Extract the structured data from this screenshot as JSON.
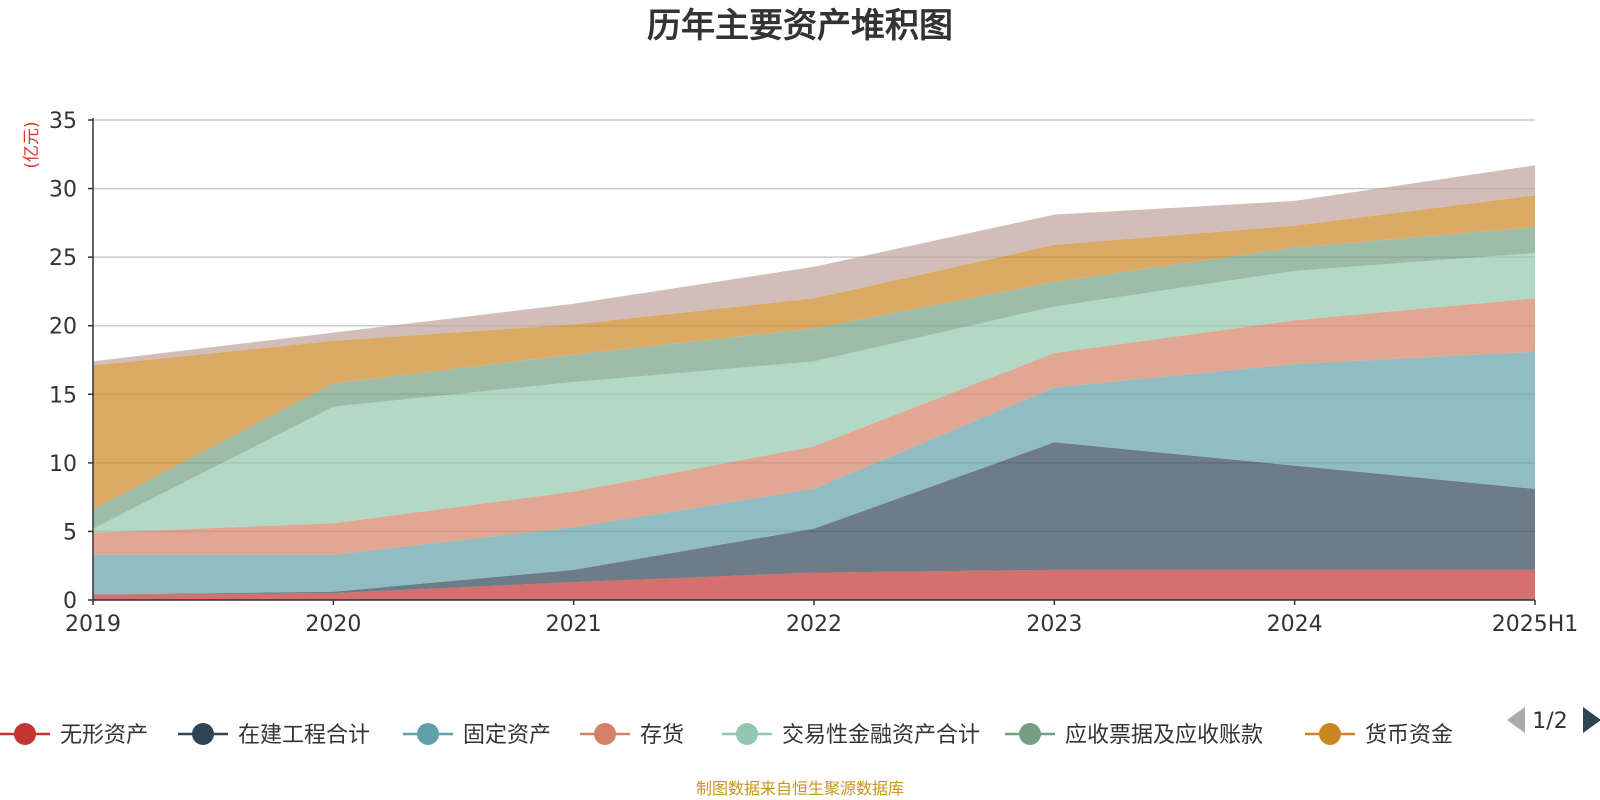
{
  "chart_data": {
    "type": "area",
    "stacked": true,
    "title": "历年主要资产堆积图",
    "unit_label": "(亿元)",
    "categories": [
      "2019",
      "2020",
      "2021",
      "2022",
      "2023",
      "2024",
      "2025H1"
    ],
    "ylim": [
      0,
      35
    ],
    "yticks": [
      0,
      5,
      10,
      15,
      20,
      25,
      30,
      35
    ],
    "grid": true,
    "legend_position": "bottom",
    "series": [
      {
        "name": "无形资产",
        "color": "#c23531",
        "values": [
          0.4,
          0.5,
          1.3,
          2.0,
          2.2,
          2.2,
          2.2
        ]
      },
      {
        "name": "在建工程合计",
        "color": "#2f4554",
        "values": [
          0.0,
          0.1,
          0.9,
          3.2,
          9.3,
          7.6,
          5.9
        ]
      },
      {
        "name": "固定资产",
        "color": "#61a0a8",
        "values": [
          2.9,
          2.7,
          3.1,
          2.9,
          4.0,
          7.4,
          10.0
        ]
      },
      {
        "name": "存货",
        "color": "#d48265",
        "values": [
          1.6,
          2.3,
          2.6,
          3.1,
          2.5,
          3.2,
          3.9
        ]
      },
      {
        "name": "交易性金融资产合计",
        "color": "#91c7ae",
        "values": [
          0.3,
          8.5,
          8.0,
          6.2,
          3.4,
          3.6,
          3.3
        ]
      },
      {
        "name": "应收票据及应收账款",
        "color": "#749f83",
        "values": [
          1.4,
          1.7,
          2.0,
          2.4,
          1.8,
          1.7,
          1.9
        ]
      },
      {
        "name": "货币资金",
        "color": "#ca8622",
        "values": [
          10.5,
          3.1,
          2.2,
          2.2,
          2.7,
          1.6,
          2.3
        ]
      },
      {
        "name": "",
        "color": "#bda29a",
        "values": [
          0.3,
          0.6,
          1.5,
          2.3,
          2.2,
          1.8,
          2.2
        ]
      }
    ]
  },
  "legend": {
    "items": [
      "无形资产",
      "在建工程合计",
      "固定资产",
      "存货",
      "交易性金融资产合计",
      "应收票据及应收账款",
      "货币资金"
    ],
    "page_indicator": "1/2",
    "prev_icon": "triangle-left-icon",
    "next_icon": "triangle-right-icon"
  },
  "footer": {
    "source": "制图数据来自恒生聚源数据库"
  }
}
